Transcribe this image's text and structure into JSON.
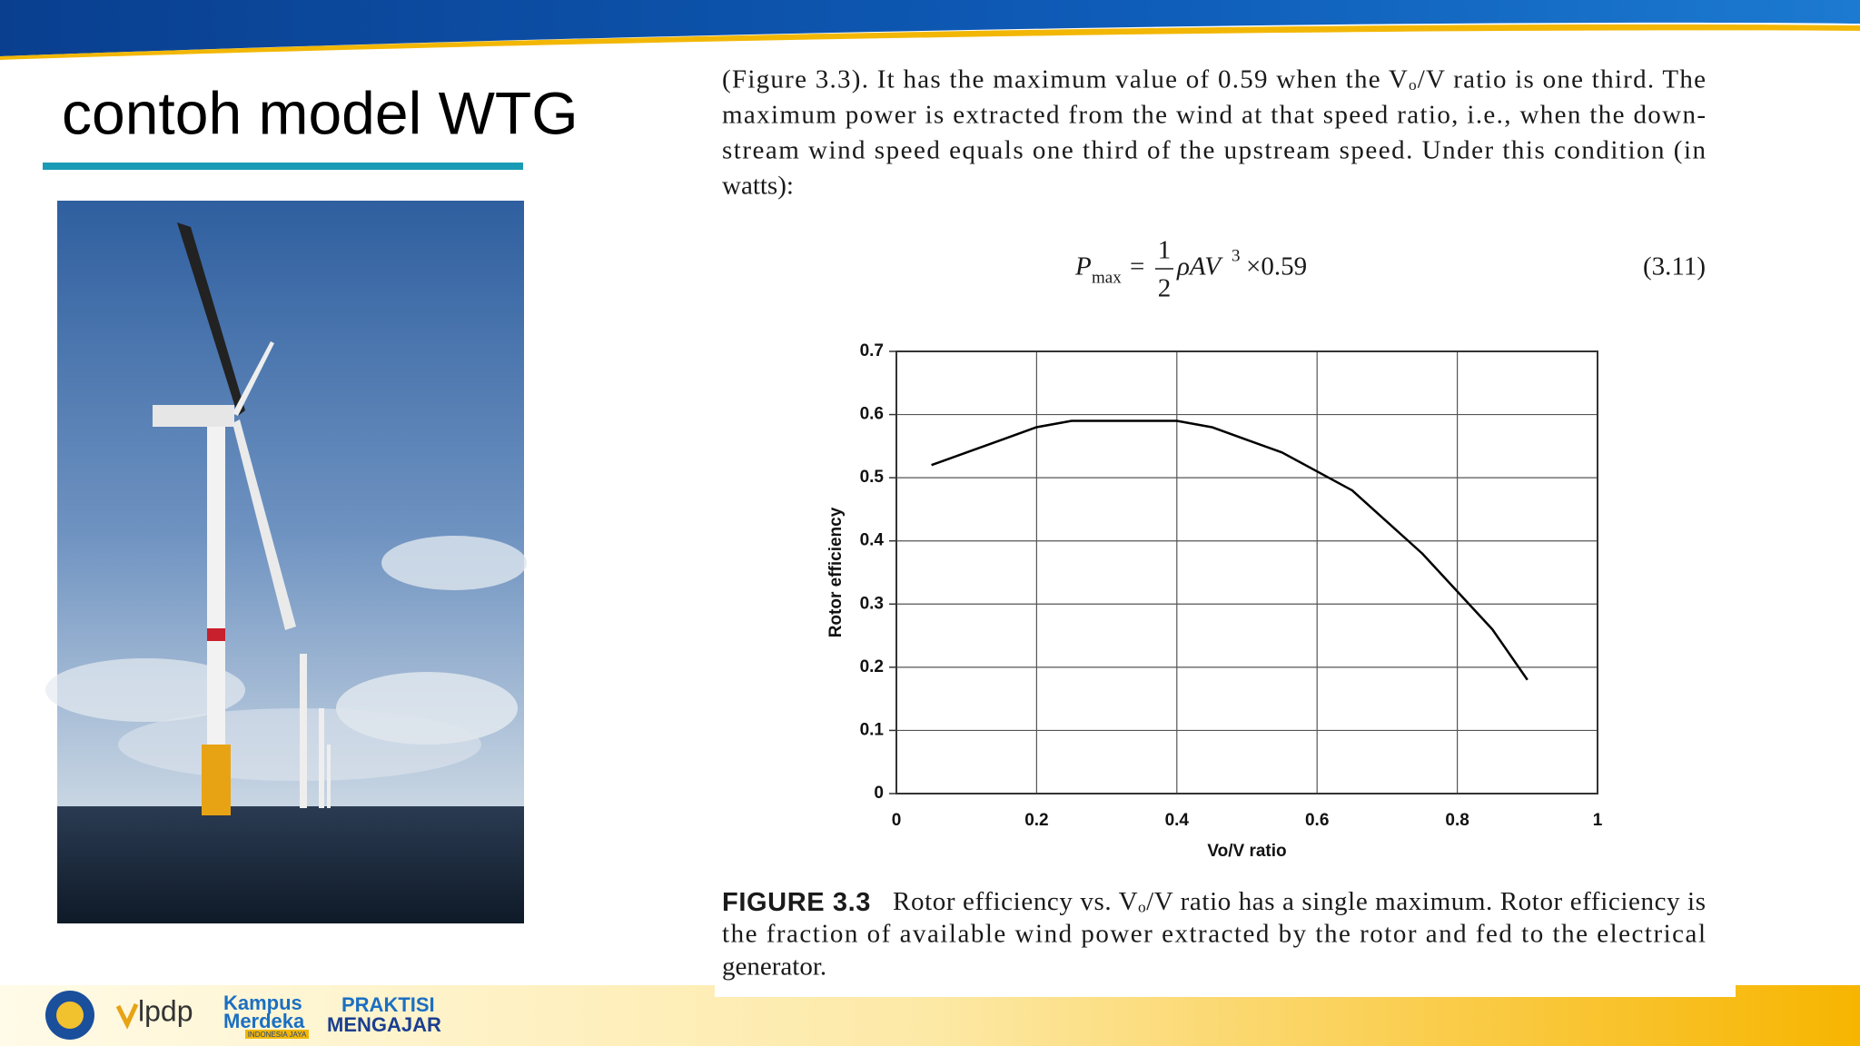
{
  "header": {
    "title": "contoh model WTG"
  },
  "excerpt": {
    "lines": [
      "(Figure 3.3). It has the maximum value of 0.59 when the Vₒ/V ratio is one third. The",
      "maximum power is extracted from the wind at that speed ratio, i.e., when the down-",
      "stream wind speed equals one third of the upstream speed. Under this condition (in",
      "watts):"
    ],
    "equation": {
      "symbol": "P",
      "subscript": "max",
      "equals": "=",
      "numerator": "1",
      "denominator": "2",
      "term": "ρAV",
      "exponent": "3",
      "factor": "×0.59",
      "number": "(3.11)"
    },
    "caption": {
      "label": "FIGURE 3.3",
      "lines": [
        "Rotor efficiency vs. Vₒ/V ratio has a single maximum. Rotor efficiency is",
        "the fraction of available wind power extracted by the rotor and fed to the electrical",
        "generator."
      ]
    }
  },
  "chart_data": {
    "type": "line",
    "xlabel": "Vo/V ratio",
    "ylabel": "Rotor efficiency",
    "x": [
      0.05,
      0.1,
      0.15,
      0.2,
      0.25,
      0.3,
      0.35,
      0.4,
      0.45,
      0.5,
      0.55,
      0.6,
      0.65,
      0.7,
      0.75,
      0.8,
      0.85,
      0.9
    ],
    "values": [
      0.52,
      0.54,
      0.56,
      0.58,
      0.59,
      0.59,
      0.59,
      0.59,
      0.58,
      0.56,
      0.54,
      0.51,
      0.48,
      0.43,
      0.38,
      0.32,
      0.26,
      0.18
    ],
    "color": "#000000",
    "xlim": [
      0,
      1
    ],
    "ylim": [
      0,
      0.7
    ],
    "xticks": [
      0,
      0.2,
      0.4,
      0.6,
      0.8,
      1
    ],
    "yticks": [
      0,
      0.1,
      0.2,
      0.3,
      0.4,
      0.5,
      0.6,
      0.7
    ],
    "grid": true
  },
  "footer": {
    "logos": [
      "lpdp",
      "Kampus",
      "Merdeka",
      "INDONESIA JAYA",
      "PRAKTISI",
      "MENGAJAR"
    ]
  }
}
